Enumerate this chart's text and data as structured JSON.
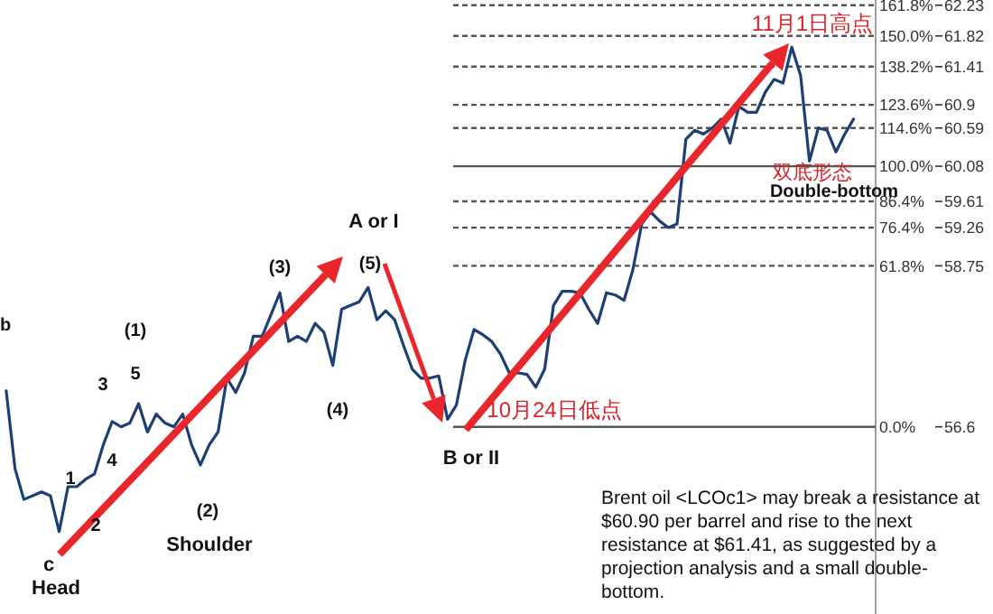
{
  "chart_data": {
    "type": "line",
    "categories": [
      null,
      null,
      null,
      null,
      null,
      null,
      null,
      null,
      null,
      null,
      null,
      null,
      null,
      null,
      null,
      null,
      null,
      null,
      null,
      null,
      null,
      null,
      null,
      null,
      null,
      null,
      null,
      null,
      null,
      null,
      null,
      null,
      null,
      null,
      null,
      null,
      null,
      null,
      null,
      null,
      null,
      null,
      null,
      null,
      null,
      null,
      null,
      null,
      null,
      null,
      null,
      null,
      null,
      null,
      null,
      null,
      null,
      null,
      null,
      null,
      null,
      null,
      null,
      null,
      null,
      null,
      null,
      null,
      null,
      null,
      null,
      null,
      null,
      null,
      null,
      null,
      null,
      null,
      null,
      null,
      null,
      null,
      null,
      null,
      null,
      null,
      null,
      null,
      null,
      null,
      null,
      null,
      null,
      null,
      null,
      null,
      null
    ],
    "series": [
      {
        "color": "#1e3f73",
        "values": [
          57.08,
          56.04,
          55.63,
          55.68,
          55.73,
          55.68,
          55.2,
          55.8,
          55.8,
          55.9,
          55.97,
          56.36,
          56.67,
          56.6,
          56.65,
          56.91,
          56.53,
          56.77,
          56.65,
          56.6,
          56.77,
          56.36,
          56.09,
          56.36,
          56.53,
          57.25,
          57.06,
          57.32,
          57.81,
          57.81,
          58.1,
          58.39,
          57.74,
          57.81,
          57.74,
          57.98,
          57.86,
          57.42,
          58.17,
          58.22,
          58.27,
          58.46,
          58.03,
          58.15,
          58.03,
          57.69,
          57.37,
          57.25,
          57.25,
          57.28,
          56.7,
          56.89,
          57.49,
          57.9,
          57.83,
          57.74,
          57.57,
          57.32,
          57.32,
          57.3,
          57.13,
          57.37,
          58.22,
          58.41,
          58.41,
          58.39,
          58.17,
          57.98,
          58.39,
          58.36,
          58.29,
          58.7,
          59.31,
          59.47,
          59.35,
          59.26,
          59.31,
          60.44,
          60.56,
          60.51,
          60.59,
          60.71,
          60.39,
          60.88,
          60.8,
          60.8,
          61.07,
          61.24,
          61.19,
          61.67,
          61.29,
          60.15,
          60.59,
          60.56,
          60.27,
          60.51,
          60.71
        ]
      }
    ],
    "ylim": [
      54.1,
      62.3
    ],
    "yticks": [
      62.23,
      61.82,
      61.41,
      60.9,
      60.59,
      60.08,
      59.61,
      59.26,
      58.75,
      56.6
    ],
    "ref_lines": [
      {
        "axis": "y",
        "value": 62.23,
        "line_style": "dashed",
        "color": "#555555"
      },
      {
        "axis": "y",
        "value": 61.82,
        "line_style": "dashed",
        "color": "#555555"
      },
      {
        "axis": "y",
        "value": 61.41,
        "line_style": "dashed",
        "color": "#555555"
      },
      {
        "axis": "y",
        "value": 60.9,
        "line_style": "dashed",
        "color": "#555555"
      },
      {
        "axis": "y",
        "value": 60.59,
        "line_style": "dashed",
        "color": "#555555"
      },
      {
        "axis": "y",
        "value": 60.08,
        "line_style": "solid",
        "color": "#555555"
      },
      {
        "axis": "y",
        "value": 59.61,
        "line_style": "dashed",
        "color": "#555555"
      },
      {
        "axis": "y",
        "value": 59.26,
        "line_style": "dashed",
        "color": "#555555"
      },
      {
        "axis": "y",
        "value": 58.75,
        "line_style": "dashed",
        "color": "#555555"
      },
      {
        "axis": "y",
        "value": 56.6,
        "line_style": "solid",
        "color": "#555555"
      }
    ],
    "annotations": [
      "b",
      "c",
      "Head",
      "1",
      "2",
      "3",
      "4",
      "5",
      "(1)",
      "(2)",
      "Shoulder",
      "(3)",
      "(4)",
      "(5)",
      "A or I",
      "B or II",
      "10月24日低点",
      "11月1日高点",
      "双底形态",
      "Double-bottom",
      "Brent oil <LCOc1> may break a resistance at $60.90 per barrel and rise to the next resistance at $61.41, as suggested by a projection analysis and a small double-bottom.",
      "161.8%",
      "150.0%",
      "138.2%",
      "123.6%",
      "114.6%",
      "100.0%",
      "86.4%",
      "76.4%",
      "61.8%",
      "0.0%"
    ]
  }
}
